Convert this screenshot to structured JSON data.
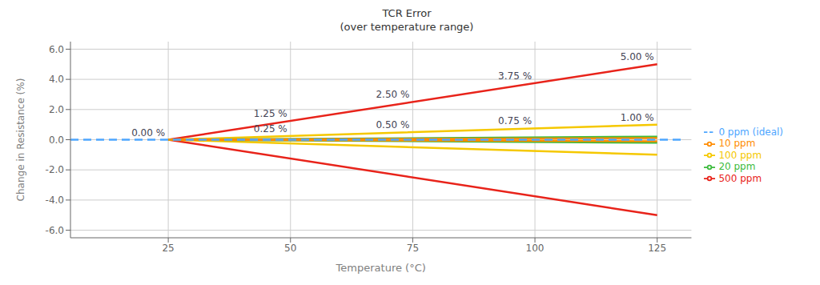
{
  "chart_data": {
    "type": "line",
    "title": "TCR Error",
    "subtitle": "(over temperature range)",
    "xlabel": "Temperature (°C)",
    "ylabel": "Change in Resistance (%)",
    "xlim": [
      5,
      132
    ],
    "ylim": [
      -6.5,
      6.5
    ],
    "xticks": [
      25,
      50,
      75,
      100,
      125
    ],
    "yticks": [
      {
        "value": -6.0,
        "label": "-6.0"
      },
      {
        "value": -4.0,
        "label": "-4.0"
      },
      {
        "value": -2.0,
        "label": "-2.0"
      },
      {
        "value": 0.0,
        "label": "0.0"
      },
      {
        "value": 2.0,
        "label": "2.0"
      },
      {
        "value": 4.0,
        "label": "4.0"
      },
      {
        "value": 6.0,
        "label": "6.0"
      }
    ],
    "grid": true,
    "legend": "right",
    "series": [
      {
        "name": "500 ppm",
        "color": "#e8231a",
        "line_style": "solid",
        "x": [
          125,
          25,
          125
        ],
        "values": [
          5.0,
          0,
          -5.0
        ]
      },
      {
        "name": "100 ppm",
        "color": "#f5c800",
        "line_style": "solid",
        "x": [
          125,
          25,
          125
        ],
        "values": [
          1.0,
          0,
          -1.0
        ]
      },
      {
        "name": "20 ppm",
        "color": "#3dbb3d",
        "line_style": "solid",
        "x": [
          125,
          25,
          125
        ],
        "values": [
          0.2,
          0,
          -0.2
        ]
      },
      {
        "name": "10 ppm",
        "color": "#ff8c00",
        "line_style": "solid",
        "x": [
          125,
          25,
          125
        ],
        "values": [
          0.1,
          0,
          -0.1
        ]
      },
      {
        "name": "0 ppm (ideal)",
        "color": "#4da6ff",
        "line_style": "dashed",
        "x": [
          5,
          130
        ],
        "values": [
          0,
          0
        ]
      }
    ],
    "annotations": [
      {
        "text": "0.00 %",
        "x": 25,
        "y": 0.0
      },
      {
        "text": "1.25 %",
        "x": 50,
        "y": 1.25
      },
      {
        "text": "0.25 %",
        "x": 50,
        "y": 0.25
      },
      {
        "text": "2.50 %",
        "x": 75,
        "y": 2.5
      },
      {
        "text": "0.50 %",
        "x": 75,
        "y": 0.5
      },
      {
        "text": "3.75 %",
        "x": 100,
        "y": 3.75
      },
      {
        "text": "0.75 %",
        "x": 100,
        "y": 0.75
      },
      {
        "text": "5.00 %",
        "x": 125,
        "y": 5.0
      },
      {
        "text": "1.00 %",
        "x": 125,
        "y": 1.0
      }
    ]
  }
}
